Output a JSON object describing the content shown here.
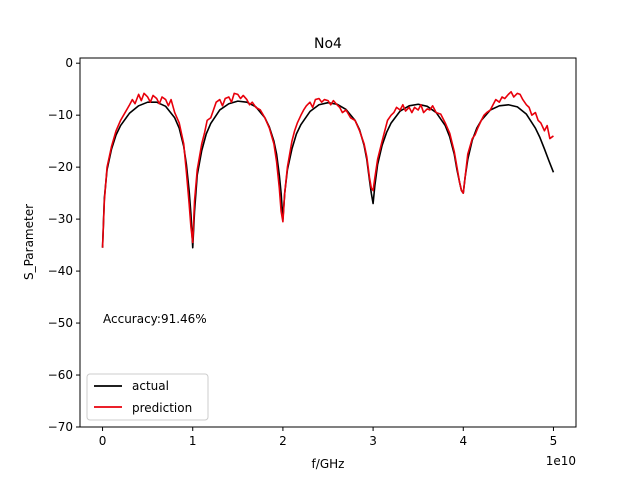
{
  "chart_data": {
    "type": "line",
    "title": "No4",
    "xlabel": "f/GHz",
    "ylabel": "S_Parameter",
    "x_offset_text": "1e10",
    "xlim": [
      -0.25,
      5.25
    ],
    "ylim": [
      -70,
      1
    ],
    "x_ticks": [
      0,
      1,
      2,
      3,
      4,
      5
    ],
    "y_ticks": [
      0,
      -10,
      -20,
      -30,
      -40,
      -50,
      -60,
      -70
    ],
    "x_tick_labels": [
      "0",
      "1",
      "2",
      "3",
      "4",
      "5"
    ],
    "y_tick_labels": [
      "0",
      "−10",
      "−20",
      "−30",
      "−40",
      "−50",
      "−60",
      "−70"
    ],
    "legend_position": "lower-left",
    "grid": false,
    "annotation": "Accuracy:91.46%",
    "series": [
      {
        "name": "actual",
        "color": "#000000",
        "x": [
          0.0,
          0.02,
          0.05,
          0.1,
          0.15,
          0.2,
          0.3,
          0.4,
          0.5,
          0.6,
          0.7,
          0.8,
          0.85,
          0.9,
          0.93,
          0.96,
          0.98,
          1.0,
          1.02,
          1.05,
          1.1,
          1.15,
          1.2,
          1.3,
          1.4,
          1.5,
          1.6,
          1.7,
          1.8,
          1.85,
          1.9,
          1.93,
          1.96,
          1.98,
          2.0,
          2.02,
          2.05,
          2.1,
          2.15,
          2.2,
          2.3,
          2.4,
          2.5,
          2.6,
          2.7,
          2.8,
          2.85,
          2.9,
          2.93,
          2.96,
          2.98,
          3.0,
          3.02,
          3.05,
          3.1,
          3.15,
          3.2,
          3.3,
          3.4,
          3.5,
          3.6,
          3.7,
          3.8,
          3.85,
          3.9,
          3.93,
          3.96,
          3.98,
          4.0,
          4.02,
          4.05,
          4.1,
          4.15,
          4.2,
          4.3,
          4.4,
          4.5,
          4.6,
          4.7,
          4.8,
          4.85,
          4.9,
          4.95,
          5.0
        ],
        "y": [
          -35.5,
          -26.0,
          -20.5,
          -16.5,
          -13.8,
          -12.0,
          -9.6,
          -8.2,
          -7.5,
          -7.5,
          -8.3,
          -10.5,
          -12.5,
          -16.0,
          -19.5,
          -24.5,
          -29.0,
          -35.5,
          -28.5,
          -21.5,
          -16.8,
          -13.6,
          -11.6,
          -9.0,
          -7.8,
          -7.3,
          -7.5,
          -8.4,
          -10.5,
          -12.3,
          -15.0,
          -17.5,
          -21.5,
          -25.0,
          -30.0,
          -25.0,
          -20.5,
          -16.5,
          -13.6,
          -11.8,
          -9.3,
          -8.0,
          -7.6,
          -7.9,
          -8.9,
          -11.0,
          -12.8,
          -15.8,
          -18.5,
          -22.5,
          -25.0,
          -27.0,
          -23.5,
          -19.5,
          -15.8,
          -13.3,
          -11.5,
          -9.2,
          -8.2,
          -7.9,
          -8.3,
          -9.5,
          -12.0,
          -14.2,
          -17.5,
          -20.5,
          -23.0,
          -24.5,
          -25.0,
          -22.0,
          -18.5,
          -14.8,
          -12.5,
          -11.0,
          -9.0,
          -8.2,
          -8.0,
          -8.4,
          -9.8,
          -12.5,
          -14.3,
          -16.5,
          -18.8,
          -21.0
        ]
      },
      {
        "name": "prediction",
        "color": "#e8000b",
        "x": [
          0.0,
          0.02,
          0.05,
          0.1,
          0.15,
          0.2,
          0.25,
          0.3,
          0.33,
          0.36,
          0.4,
          0.43,
          0.46,
          0.5,
          0.53,
          0.56,
          0.6,
          0.63,
          0.66,
          0.7,
          0.73,
          0.76,
          0.8,
          0.85,
          0.9,
          0.93,
          0.96,
          0.98,
          1.0,
          1.02,
          1.05,
          1.1,
          1.13,
          1.16,
          1.2,
          1.23,
          1.26,
          1.3,
          1.33,
          1.36,
          1.4,
          1.43,
          1.46,
          1.5,
          1.53,
          1.56,
          1.6,
          1.63,
          1.66,
          1.7,
          1.75,
          1.8,
          1.85,
          1.9,
          1.93,
          1.96,
          1.98,
          2.0,
          2.02,
          2.05,
          2.1,
          2.13,
          2.16,
          2.2,
          2.23,
          2.26,
          2.3,
          2.33,
          2.36,
          2.4,
          2.43,
          2.46,
          2.5,
          2.53,
          2.56,
          2.6,
          2.63,
          2.66,
          2.7,
          2.75,
          2.8,
          2.85,
          2.9,
          2.93,
          2.96,
          2.98,
          3.0,
          3.02,
          3.05,
          3.1,
          3.13,
          3.16,
          3.2,
          3.23,
          3.26,
          3.3,
          3.33,
          3.36,
          3.4,
          3.43,
          3.46,
          3.5,
          3.53,
          3.56,
          3.6,
          3.63,
          3.66,
          3.7,
          3.75,
          3.8,
          3.85,
          3.9,
          3.93,
          3.96,
          3.98,
          4.0,
          4.02,
          4.05,
          4.1,
          4.13,
          4.16,
          4.2,
          4.23,
          4.26,
          4.3,
          4.33,
          4.36,
          4.4,
          4.43,
          4.46,
          4.5,
          4.53,
          4.56,
          4.6,
          4.63,
          4.66,
          4.7,
          4.73,
          4.76,
          4.8,
          4.83,
          4.86,
          4.9,
          4.93,
          4.96,
          5.0
        ],
        "y": [
          -35.5,
          -26.5,
          -20.0,
          -16.0,
          -13.0,
          -11.0,
          -9.5,
          -8.0,
          -7.0,
          -7.8,
          -6.0,
          -7.2,
          -5.8,
          -6.5,
          -7.5,
          -6.2,
          -6.8,
          -7.8,
          -6.5,
          -7.0,
          -8.2,
          -7.0,
          -9.5,
          -11.5,
          -15.5,
          -21.0,
          -27.0,
          -31.5,
          -34.5,
          -26.5,
          -20.5,
          -15.5,
          -13.5,
          -11.0,
          -10.5,
          -9.0,
          -7.5,
          -7.0,
          -8.2,
          -6.8,
          -6.5,
          -7.5,
          -5.8,
          -6.0,
          -6.8,
          -6.2,
          -7.0,
          -8.0,
          -7.5,
          -8.5,
          -9.0,
          -10.5,
          -12.5,
          -15.5,
          -19.0,
          -24.0,
          -28.5,
          -30.5,
          -25.0,
          -20.0,
          -15.0,
          -13.0,
          -11.5,
          -10.0,
          -9.0,
          -8.2,
          -7.5,
          -8.5,
          -7.0,
          -6.8,
          -7.5,
          -7.0,
          -7.2,
          -8.0,
          -7.2,
          -8.0,
          -8.5,
          -9.5,
          -9.0,
          -10.5,
          -11.0,
          -13.0,
          -15.5,
          -18.0,
          -22.0,
          -24.0,
          -24.5,
          -22.0,
          -18.5,
          -15.0,
          -13.0,
          -11.0,
          -10.0,
          -9.5,
          -8.5,
          -9.0,
          -8.0,
          -9.2,
          -8.5,
          -9.5,
          -8.5,
          -9.0,
          -8.0,
          -9.5,
          -8.8,
          -9.0,
          -8.2,
          -9.5,
          -9.8,
          -11.5,
          -13.5,
          -17.0,
          -20.0,
          -23.0,
          -24.5,
          -25.0,
          -22.0,
          -17.5,
          -14.5,
          -13.8,
          -12.5,
          -11.0,
          -10.0,
          -9.5,
          -9.0,
          -8.0,
          -7.0,
          -7.5,
          -6.5,
          -6.8,
          -6.0,
          -5.5,
          -6.5,
          -5.8,
          -6.0,
          -7.0,
          -8.0,
          -8.5,
          -10.0,
          -9.5,
          -11.0,
          -11.5,
          -13.0,
          -12.0,
          -14.5,
          -14.0
        ]
      }
    ]
  }
}
